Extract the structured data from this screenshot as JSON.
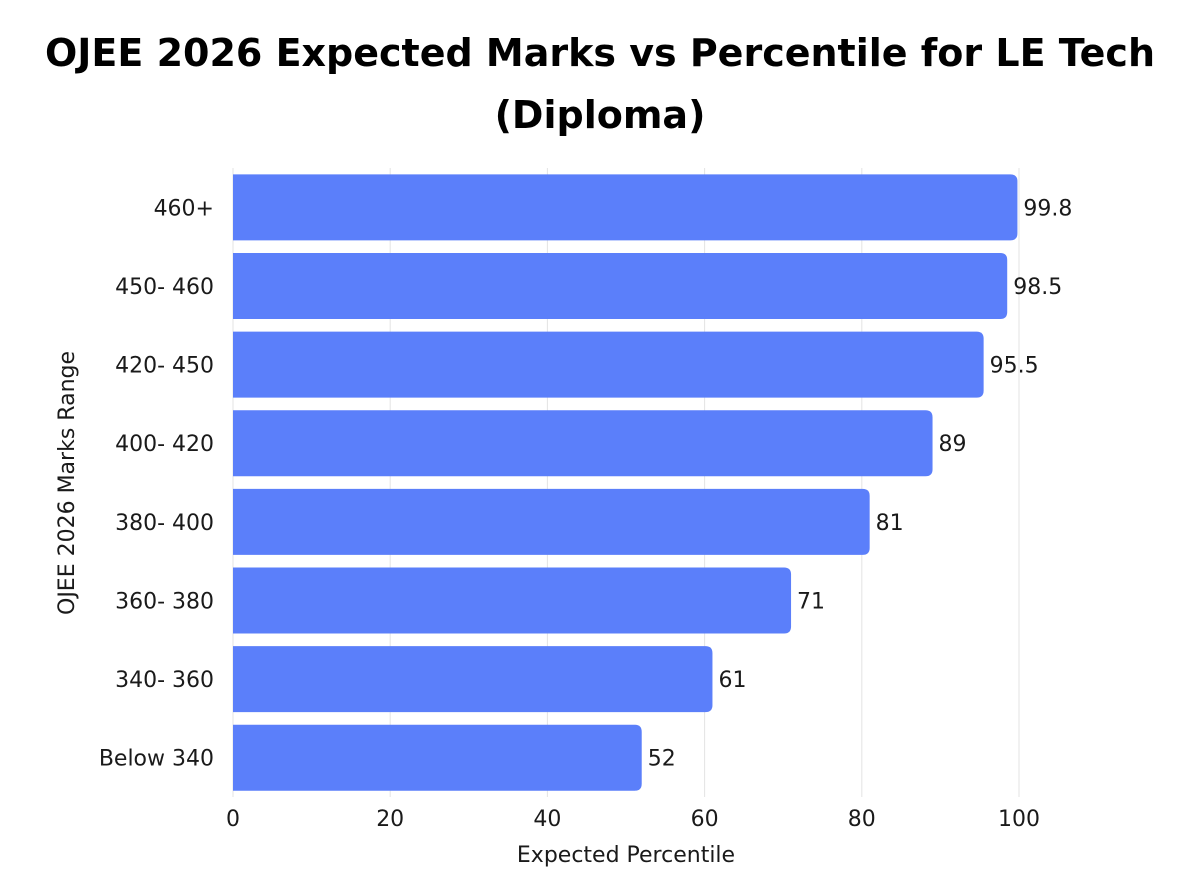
{
  "chart_data": {
    "type": "bar",
    "orientation": "horizontal",
    "title_line1": "OJEE 2026 Expected Marks vs Percentile for LE Tech",
    "title_line2": "(Diploma)",
    "xlabel": "Expected Percentile",
    "ylabel": "OJEE 2026 Marks Range",
    "categories": [
      "460+",
      "450- 460",
      "420- 450",
      "400- 420",
      "380- 400",
      "360- 380",
      "340- 360",
      "Below 340"
    ],
    "values": [
      99.8,
      98.5,
      95.5,
      89,
      81,
      71,
      61,
      52
    ],
    "value_labels": [
      "99.8",
      "98.5",
      "95.5",
      "89",
      "81",
      "71",
      "61",
      "52"
    ],
    "xlim": [
      0,
      100
    ],
    "xticks": [
      0,
      20,
      40,
      60,
      80,
      100
    ],
    "xtick_labels": [
      "0",
      "20",
      "40",
      "60",
      "80",
      "100"
    ],
    "grid": true,
    "bar_color": "#5b7ffa",
    "grid_color": "#e3e3e3"
  }
}
